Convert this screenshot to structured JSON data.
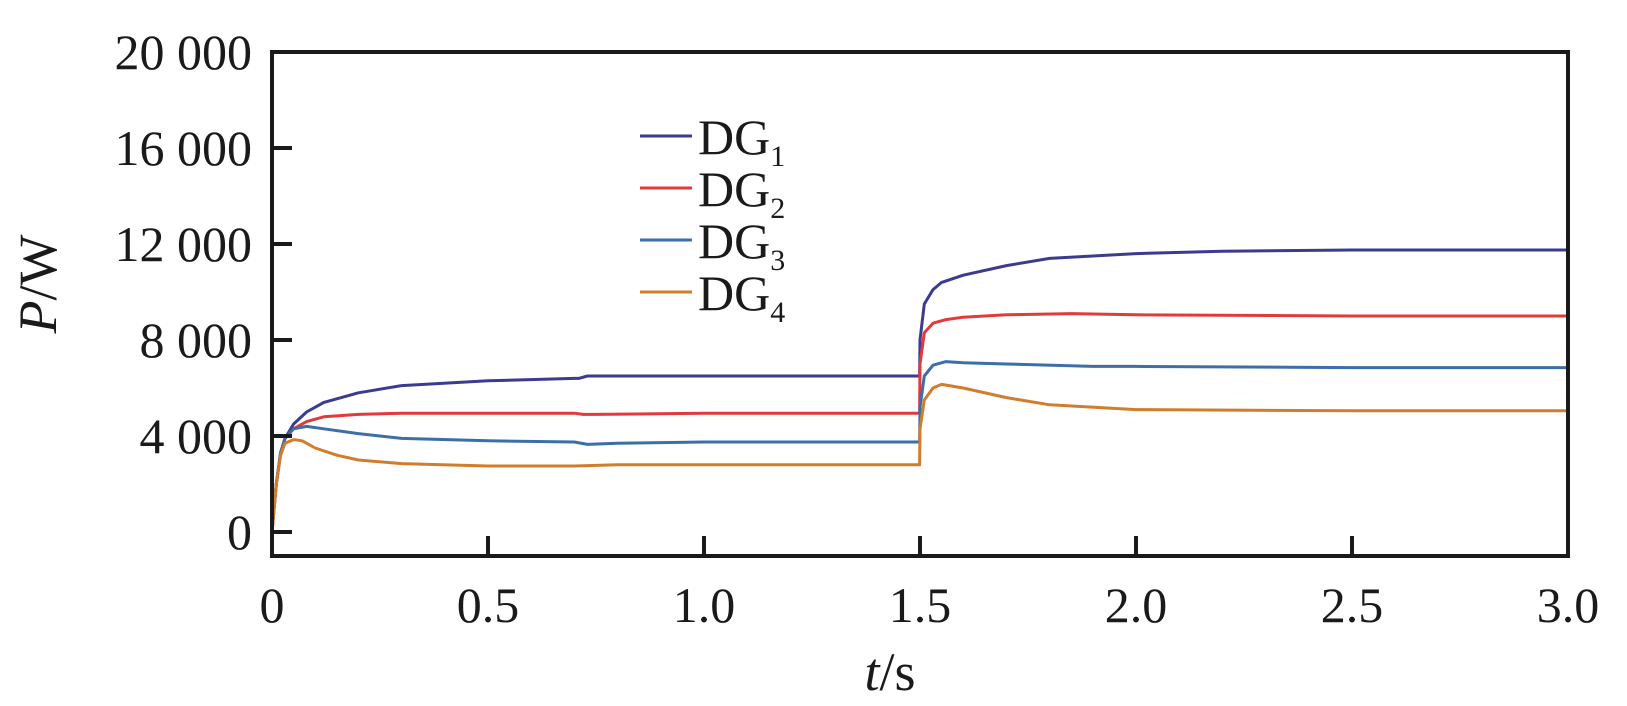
{
  "chart_data": {
    "type": "line",
    "xlabel": {
      "var": "t",
      "unit": "/s"
    },
    "ylabel": {
      "var": "P",
      "unit": "/W"
    },
    "xlim": [
      0,
      3.0
    ],
    "ylim": [
      -1000,
      20000
    ],
    "x_ticks": [
      0,
      0.5,
      1.0,
      1.5,
      2.0,
      2.5,
      3.0
    ],
    "x_tick_labels": [
      "0",
      "0.5",
      "1.0",
      "1.5",
      "2.0",
      "2.5",
      "3.0"
    ],
    "y_ticks": [
      0,
      4000,
      8000,
      12000,
      16000,
      20000
    ],
    "y_tick_labels": [
      "0",
      "4 000",
      "8 000",
      "12 000",
      "16 000",
      "20 000"
    ],
    "legend_position": "upper-center",
    "grid": false,
    "series": [
      {
        "name": "DG",
        "sub": "1",
        "color": "#3b3b8f",
        "x": [
          0,
          0.01,
          0.02,
          0.03,
          0.05,
          0.08,
          0.12,
          0.2,
          0.3,
          0.5,
          0.7,
          0.71,
          0.73,
          1.0,
          1.3,
          1.499,
          1.5,
          1.51,
          1.53,
          1.55,
          1.6,
          1.7,
          1.8,
          2.0,
          2.2,
          2.5,
          3.0
        ],
        "y": [
          0,
          2000,
          3300,
          3900,
          4500,
          5000,
          5400,
          5800,
          6100,
          6300,
          6400,
          6400,
          6500,
          6500,
          6500,
          6500,
          8000,
          9500,
          10100,
          10400,
          10700,
          11100,
          11400,
          11600,
          11700,
          11750,
          11750
        ]
      },
      {
        "name": "DG",
        "sub": "2",
        "color": "#e03a3a",
        "x": [
          0,
          0.01,
          0.02,
          0.03,
          0.05,
          0.08,
          0.12,
          0.2,
          0.3,
          0.5,
          0.7,
          0.72,
          0.75,
          1.0,
          1.3,
          1.499,
          1.5,
          1.51,
          1.53,
          1.56,
          1.6,
          1.7,
          1.85,
          2.0,
          2.5,
          3.0
        ],
        "y": [
          0,
          2000,
          3300,
          3900,
          4300,
          4600,
          4800,
          4900,
          4950,
          4950,
          4950,
          4900,
          4900,
          4950,
          4950,
          4950,
          7000,
          8300,
          8700,
          8850,
          8950,
          9050,
          9100,
          9050,
          9000,
          9000
        ]
      },
      {
        "name": "DG",
        "sub": "3",
        "color": "#3c6ea8",
        "x": [
          0,
          0.01,
          0.02,
          0.03,
          0.05,
          0.08,
          0.12,
          0.2,
          0.3,
          0.5,
          0.7,
          0.73,
          0.8,
          1.0,
          1.3,
          1.499,
          1.5,
          1.51,
          1.53,
          1.56,
          1.6,
          1.7,
          1.9,
          2.0,
          2.5,
          3.0
        ],
        "y": [
          0,
          2000,
          3300,
          3900,
          4300,
          4400,
          4300,
          4100,
          3900,
          3800,
          3750,
          3650,
          3700,
          3750,
          3750,
          3750,
          5200,
          6500,
          6950,
          7100,
          7050,
          7000,
          6900,
          6900,
          6850,
          6850
        ]
      },
      {
        "name": "DG",
        "sub": "4",
        "color": "#d27c2e",
        "x": [
          0,
          0.01,
          0.02,
          0.03,
          0.05,
          0.07,
          0.1,
          0.15,
          0.2,
          0.3,
          0.5,
          0.7,
          0.8,
          1.0,
          1.3,
          1.499,
          1.5,
          1.51,
          1.53,
          1.55,
          1.6,
          1.7,
          1.8,
          2.0,
          2.5,
          3.0
        ],
        "y": [
          0,
          2000,
          3200,
          3700,
          3850,
          3800,
          3500,
          3200,
          3000,
          2850,
          2750,
          2750,
          2800,
          2800,
          2800,
          2800,
          4300,
          5500,
          6000,
          6150,
          6000,
          5600,
          5300,
          5100,
          5050,
          5050
        ]
      }
    ]
  }
}
